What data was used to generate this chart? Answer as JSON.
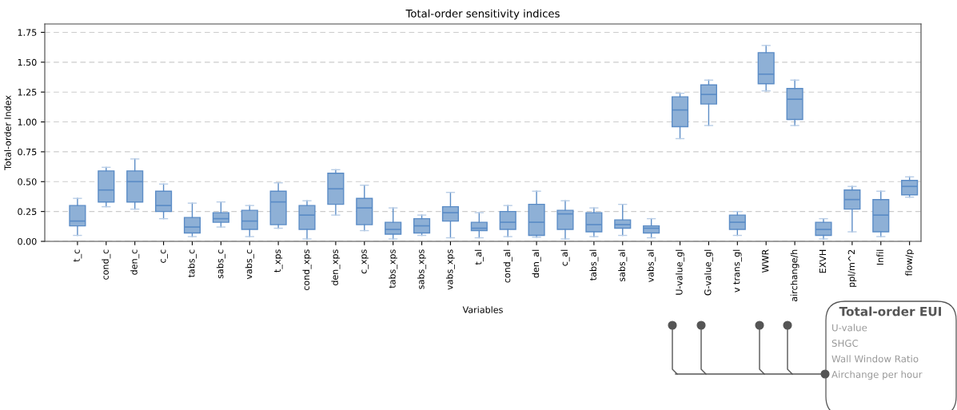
{
  "chart_data": {
    "type": "box",
    "title": "Total-order sensitivity indices",
    "xlabel": "Variables",
    "ylabel": "Total-order Index",
    "categories": [
      "t_c",
      "cond_c",
      "den_c",
      "c_c",
      "tabs_c",
      "sabs_c",
      "vabs_c",
      "t_xps",
      "cond_xps",
      "den_xps",
      "c_xps",
      "tabs_xps",
      "sabs_xps",
      "vabs_xps",
      "t_al",
      "cond_al",
      "den_al",
      "c_al",
      "tabs_al",
      "sabs_al",
      "vabs_al",
      "U-value_gl",
      "G-value_gl",
      "v trans_gl",
      "WWR",
      "airchange/h",
      "EXVH",
      "ppl/m^2",
      "Infil",
      "flow/p"
    ],
    "color": "#8eb0d6",
    "boxes": [
      {
        "low": 0.05,
        "q1": 0.13,
        "median": 0.17,
        "q3": 0.3,
        "high": 0.36
      },
      {
        "low": 0.29,
        "q1": 0.33,
        "median": 0.43,
        "q3": 0.59,
        "high": 0.62
      },
      {
        "low": 0.27,
        "q1": 0.33,
        "median": 0.5,
        "q3": 0.59,
        "high": 0.69
      },
      {
        "low": 0.19,
        "q1": 0.25,
        "median": 0.3,
        "q3": 0.42,
        "high": 0.48
      },
      {
        "low": 0.04,
        "q1": 0.07,
        "median": 0.12,
        "q3": 0.2,
        "high": 0.32
      },
      {
        "low": 0.12,
        "q1": 0.16,
        "median": 0.19,
        "q3": 0.24,
        "high": 0.33
      },
      {
        "low": 0.04,
        "q1": 0.1,
        "median": 0.17,
        "q3": 0.26,
        "high": 0.3
      },
      {
        "low": 0.11,
        "q1": 0.14,
        "median": 0.33,
        "q3": 0.42,
        "high": 0.49
      },
      {
        "low": 0.02,
        "q1": 0.1,
        "median": 0.22,
        "q3": 0.3,
        "high": 0.34
      },
      {
        "low": 0.22,
        "q1": 0.31,
        "median": 0.44,
        "q3": 0.57,
        "high": 0.6
      },
      {
        "low": 0.09,
        "q1": 0.14,
        "median": 0.28,
        "q3": 0.36,
        "high": 0.47
      },
      {
        "low": 0.02,
        "q1": 0.06,
        "median": 0.1,
        "q3": 0.16,
        "high": 0.28
      },
      {
        "low": 0.05,
        "q1": 0.07,
        "median": 0.13,
        "q3": 0.19,
        "high": 0.22
      },
      {
        "low": 0.03,
        "q1": 0.17,
        "median": 0.24,
        "q3": 0.29,
        "high": 0.41
      },
      {
        "low": 0.03,
        "q1": 0.09,
        "median": 0.11,
        "q3": 0.16,
        "high": 0.24
      },
      {
        "low": 0.04,
        "q1": 0.1,
        "median": 0.16,
        "q3": 0.25,
        "high": 0.3
      },
      {
        "low": 0.035,
        "q1": 0.05,
        "median": 0.16,
        "q3": 0.31,
        "high": 0.42
      },
      {
        "low": 0.02,
        "q1": 0.1,
        "median": 0.23,
        "q3": 0.26,
        "high": 0.34
      },
      {
        "low": 0.04,
        "q1": 0.08,
        "median": 0.14,
        "q3": 0.24,
        "high": 0.28
      },
      {
        "low": 0.05,
        "q1": 0.11,
        "median": 0.14,
        "q3": 0.18,
        "high": 0.31
      },
      {
        "low": 0.03,
        "q1": 0.07,
        "median": 0.11,
        "q3": 0.13,
        "high": 0.19
      },
      {
        "low": 0.86,
        "q1": 0.96,
        "median": 1.1,
        "q3": 1.21,
        "high": 1.24
      },
      {
        "low": 0.97,
        "q1": 1.15,
        "median": 1.23,
        "q3": 1.31,
        "high": 1.35
      },
      {
        "low": 0.05,
        "q1": 0.1,
        "median": 0.16,
        "q3": 0.22,
        "high": 0.25
      },
      {
        "low": 1.26,
        "q1": 1.32,
        "median": 1.4,
        "q3": 1.58,
        "high": 1.64
      },
      {
        "low": 0.97,
        "q1": 1.02,
        "median": 1.19,
        "q3": 1.28,
        "high": 1.35
      },
      {
        "low": 0.02,
        "q1": 0.05,
        "median": 0.1,
        "q3": 0.16,
        "high": 0.19
      },
      {
        "low": 0.08,
        "q1": 0.27,
        "median": 0.35,
        "q3": 0.43,
        "high": 0.46
      },
      {
        "low": 0.04,
        "q1": 0.08,
        "median": 0.22,
        "q3": 0.35,
        "high": 0.42
      },
      {
        "low": 0.37,
        "q1": 0.39,
        "median": 0.46,
        "q3": 0.51,
        "high": 0.54
      }
    ],
    "ylim": [
      0,
      1.82
    ],
    "yticks": [
      {
        "value": 0,
        "label": "0.00"
      },
      {
        "value": 0.25,
        "label": "0.25"
      },
      {
        "value": 0.5,
        "label": "0.50"
      },
      {
        "value": 0.75,
        "label": "0.75"
      },
      {
        "value": 1.0,
        "label": "1.00"
      },
      {
        "value": 1.25,
        "label": "1.25"
      },
      {
        "value": 1.5,
        "label": "1.50"
      },
      {
        "value": 1.75,
        "label": "1.75"
      }
    ],
    "grid": "y",
    "annotations": [
      "Total-order EUI",
      "U-value",
      "SHGC",
      "Wall Window Ratio",
      "Airchange per hour"
    ]
  }
}
